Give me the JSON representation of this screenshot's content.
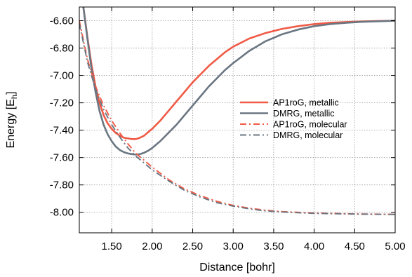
{
  "chart_data": {
    "type": "line",
    "xlabel": "Distance [bohr]",
    "ylabel": "Energy [E",
    "ylabel_sub": "h",
    "ylabel_close": "]",
    "xlim": [
      1.1,
      5.0
    ],
    "ylim": [
      -8.15,
      -6.5
    ],
    "xticks": [
      1.5,
      2.0,
      2.5,
      3.0,
      3.5,
      4.0,
      4.5,
      5.0
    ],
    "xtick_labels": [
      "1.50",
      "2.00",
      "2.50",
      "3.00",
      "3.50",
      "4.00",
      "4.50",
      "5.00"
    ],
    "yticks": [
      -6.6,
      -6.8,
      -7.0,
      -7.2,
      -7.4,
      -7.6,
      -7.8,
      -8.0
    ],
    "ytick_labels": [
      "-6.60",
      "-6.80",
      "-7.00",
      "-7.20",
      "-7.40",
      "-7.60",
      "-7.80",
      "-8.00"
    ],
    "grid": true,
    "legend_position": "right",
    "series": [
      {
        "name": "AP1roG, metallic",
        "color": "#f05a46",
        "style": "solid",
        "x": [
          1.15,
          1.2,
          1.25,
          1.3,
          1.35,
          1.4,
          1.45,
          1.5,
          1.55,
          1.6,
          1.65,
          1.7,
          1.75,
          1.8,
          1.85,
          1.9,
          2.0,
          2.1,
          2.2,
          2.3,
          2.4,
          2.5,
          2.6,
          2.7,
          2.8,
          2.9,
          3.0,
          3.2,
          3.4,
          3.6,
          3.8,
          4.0,
          4.2,
          4.4,
          4.6,
          4.8,
          5.0
        ],
        "y": [
          -6.5,
          -6.72,
          -6.92,
          -7.08,
          -7.2,
          -7.29,
          -7.35,
          -7.39,
          -7.42,
          -7.44,
          -7.455,
          -7.46,
          -7.465,
          -7.465,
          -7.455,
          -7.44,
          -7.39,
          -7.33,
          -7.26,
          -7.19,
          -7.12,
          -7.05,
          -6.99,
          -6.93,
          -6.88,
          -6.83,
          -6.79,
          -6.73,
          -6.69,
          -6.66,
          -6.64,
          -6.625,
          -6.615,
          -6.61,
          -6.605,
          -6.602,
          -6.6
        ]
      },
      {
        "name": "DMRG, metallic",
        "color": "#6a7682",
        "style": "solid",
        "x": [
          1.15,
          1.2,
          1.25,
          1.3,
          1.35,
          1.4,
          1.45,
          1.5,
          1.55,
          1.6,
          1.65,
          1.7,
          1.75,
          1.8,
          1.85,
          1.9,
          1.95,
          2.0,
          2.1,
          2.2,
          2.3,
          2.4,
          2.5,
          2.6,
          2.7,
          2.8,
          2.9,
          3.0,
          3.2,
          3.4,
          3.6,
          3.8,
          4.0,
          4.2,
          4.4,
          4.6,
          4.8,
          5.0
        ],
        "y": [
          -6.5,
          -6.73,
          -6.95,
          -7.12,
          -7.26,
          -7.36,
          -7.43,
          -7.48,
          -7.52,
          -7.545,
          -7.56,
          -7.57,
          -7.575,
          -7.578,
          -7.575,
          -7.565,
          -7.55,
          -7.53,
          -7.48,
          -7.42,
          -7.36,
          -7.29,
          -7.22,
          -7.15,
          -7.08,
          -7.02,
          -6.96,
          -6.91,
          -6.82,
          -6.75,
          -6.7,
          -6.665,
          -6.64,
          -6.625,
          -6.615,
          -6.608,
          -6.604,
          -6.6
        ]
      },
      {
        "name": "AP1roG, molecular",
        "color": "#f05a46",
        "style": "dashdot",
        "x": [
          1.1,
          1.2,
          1.3,
          1.4,
          1.5,
          1.6,
          1.7,
          1.8,
          1.9,
          2.0,
          2.2,
          2.4,
          2.6,
          2.8,
          3.0,
          3.2,
          3.4,
          3.6,
          3.8,
          4.0,
          4.5,
          5.0
        ],
        "y": [
          -6.6,
          -6.88,
          -7.08,
          -7.22,
          -7.33,
          -7.42,
          -7.5,
          -7.57,
          -7.62,
          -7.67,
          -7.76,
          -7.83,
          -7.88,
          -7.92,
          -7.95,
          -7.97,
          -7.985,
          -7.995,
          -8.0,
          -8.005,
          -8.012,
          -8.015
        ]
      },
      {
        "name": "DMRG, molecular",
        "color": "#6a7682",
        "style": "dashdot",
        "x": [
          1.1,
          1.2,
          1.3,
          1.4,
          1.5,
          1.6,
          1.7,
          1.8,
          1.9,
          2.0,
          2.2,
          2.4,
          2.6,
          2.8,
          3.0,
          3.2,
          3.4,
          3.6,
          3.8,
          4.0,
          4.5,
          5.0
        ],
        "y": [
          -6.62,
          -6.9,
          -7.1,
          -7.25,
          -7.36,
          -7.45,
          -7.53,
          -7.59,
          -7.64,
          -7.69,
          -7.77,
          -7.84,
          -7.89,
          -7.93,
          -7.955,
          -7.975,
          -7.99,
          -7.998,
          -8.003,
          -8.008,
          -8.013,
          -8.016
        ]
      }
    ]
  }
}
